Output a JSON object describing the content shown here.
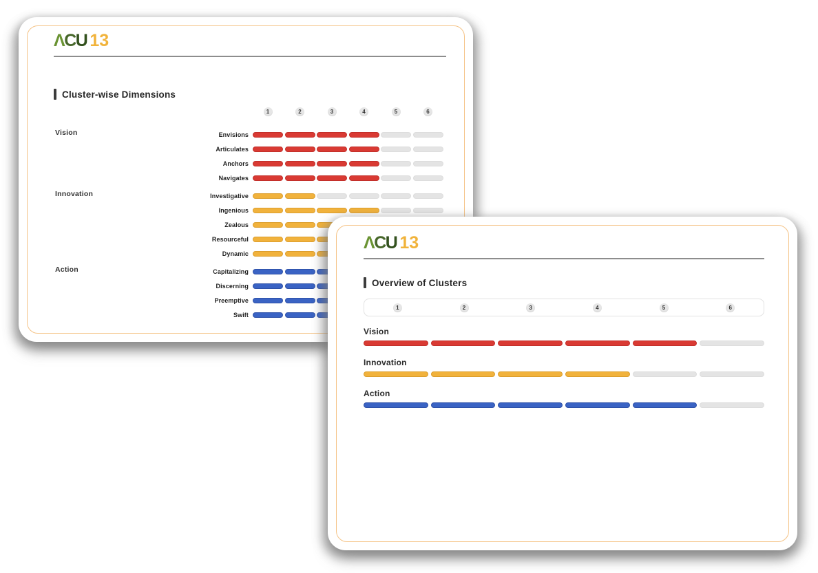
{
  "brand": {
    "logo_parts": [
      {
        "text": "Λ",
        "color": "#6a9333"
      },
      {
        "text": "C",
        "color": "#47672a"
      },
      {
        "text": "U",
        "color": "#33511e"
      },
      {
        "text": "13",
        "color": "#f1b33b"
      }
    ]
  },
  "scale": {
    "max": 6,
    "ticks": [
      "1",
      "2",
      "3",
      "4",
      "5",
      "6"
    ]
  },
  "palette": {
    "vision": {
      "fill": "#d93a33",
      "border": "#c22f2a"
    },
    "innovation": {
      "fill": "#f1b23c",
      "border": "#dc9e2d"
    },
    "action": {
      "fill": "#3a63c4",
      "border": "#2e51a8"
    },
    "empty": {
      "fill": "#e4e4e4",
      "border": "#dddddd"
    }
  },
  "back_card": {
    "title": "Cluster-wise Dimensions",
    "clusters": [
      {
        "name": "Vision",
        "key": "vision",
        "rows": [
          {
            "label": "Envisions",
            "value": 4
          },
          {
            "label": "Articulates",
            "value": 4
          },
          {
            "label": "Anchors",
            "value": 4
          },
          {
            "label": "Navigates",
            "value": 4
          }
        ]
      },
      {
        "name": "Innovation",
        "key": "innovation",
        "rows": [
          {
            "label": "Investigative",
            "value": 2
          },
          {
            "label": "Ingenious",
            "value": 4
          },
          {
            "label": "Zealous",
            "value": 4
          },
          {
            "label": "Resourceful",
            "value": 4
          },
          {
            "label": "Dynamic",
            "value": 4
          }
        ]
      },
      {
        "name": "Action",
        "key": "action",
        "rows": [
          {
            "label": "Capitalizing",
            "value": 5
          },
          {
            "label": "Discerning",
            "value": 5
          },
          {
            "label": "Preemptive",
            "value": 5
          },
          {
            "label": "Swift",
            "value": 5
          }
        ]
      }
    ]
  },
  "front_card": {
    "title": "Overview of Clusters",
    "clusters": [
      {
        "name": "Vision",
        "key": "vision",
        "value": 5
      },
      {
        "name": "Innovation",
        "key": "innovation",
        "value": 4
      },
      {
        "name": "Action",
        "key": "action",
        "value": 5
      }
    ]
  },
  "chart_data": [
    {
      "type": "bar",
      "title": "Cluster-wise Dimensions",
      "categories": [
        "Envisions",
        "Articulates",
        "Anchors",
        "Navigates",
        "Investigative",
        "Ingenious",
        "Zealous",
        "Resourceful",
        "Dynamic",
        "Capitalizing",
        "Discerning",
        "Preemptive",
        "Swift"
      ],
      "values": [
        4,
        4,
        4,
        4,
        2,
        4,
        4,
        4,
        4,
        5,
        5,
        5,
        5
      ],
      "groups": [
        "Vision",
        "Vision",
        "Vision",
        "Vision",
        "Innovation",
        "Innovation",
        "Innovation",
        "Innovation",
        "Innovation",
        "Action",
        "Action",
        "Action",
        "Action"
      ],
      "xlabel": "",
      "ylabel": "",
      "xlim": [
        0,
        6
      ],
      "tick_labels": [
        "1",
        "2",
        "3",
        "4",
        "5",
        "6"
      ]
    },
    {
      "type": "bar",
      "title": "Overview of Clusters",
      "categories": [
        "Vision",
        "Innovation",
        "Action"
      ],
      "values": [
        5,
        4,
        5
      ],
      "xlabel": "",
      "ylabel": "",
      "xlim": [
        0,
        6
      ],
      "tick_labels": [
        "1",
        "2",
        "3",
        "4",
        "5",
        "6"
      ]
    }
  ]
}
